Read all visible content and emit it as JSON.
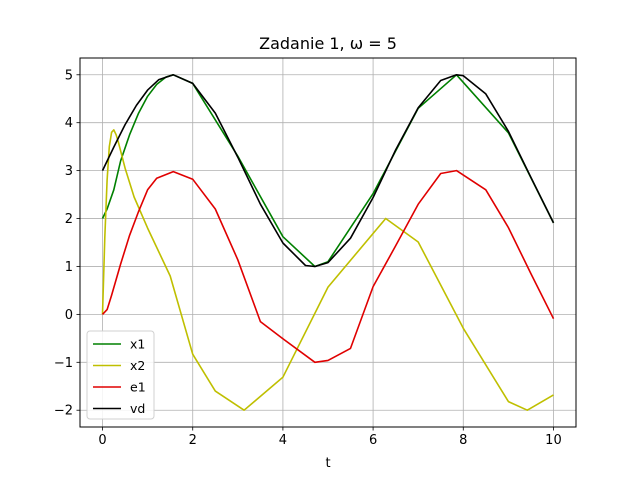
{
  "chart_data": {
    "type": "line",
    "title": "Zadanie 1, ω = 5",
    "xlabel": "t",
    "ylabel": "",
    "xlim": [
      -0.5,
      10.5
    ],
    "ylim": [
      -2.35,
      5.35
    ],
    "xticks": [
      0,
      2,
      4,
      6,
      8,
      10
    ],
    "xtick_labels": [
      "0",
      "2",
      "4",
      "6",
      "8",
      "10"
    ],
    "yticks": [
      -2,
      -1,
      0,
      1,
      2,
      3,
      4,
      5
    ],
    "ytick_labels": [
      "−2",
      "−1",
      "0",
      "1",
      "2",
      "3",
      "4",
      "5"
    ],
    "grid": true,
    "legend_position": "lower-left",
    "series": [
      {
        "name": "x1",
        "color": "#008000",
        "x": [
          0,
          0.1,
          0.25,
          0.4,
          0.6,
          0.8,
          1.0,
          1.2,
          1.4,
          1.57,
          2,
          3,
          4,
          4.71,
          5,
          6,
          7,
          7.85,
          9,
          10
        ],
        "y": [
          2.0,
          2.2,
          2.6,
          3.2,
          3.75,
          4.2,
          4.55,
          4.8,
          4.95,
          5.0,
          4.82,
          3.3,
          1.62,
          1.0,
          1.1,
          2.52,
          4.3,
          5.0,
          3.79,
          1.91
        ]
      },
      {
        "name": "x2",
        "color": "#bfbf00",
        "x": [
          0,
          0.05,
          0.1,
          0.15,
          0.2,
          0.25,
          0.3,
          0.35,
          0.5,
          0.7,
          1.0,
          1.5,
          2.0,
          2.5,
          3.14,
          4.0,
          5.0,
          6.28,
          7.0,
          8.0,
          9.0,
          9.42,
          10.0
        ],
        "y": [
          0.0,
          1.6,
          2.8,
          3.5,
          3.8,
          3.85,
          3.75,
          3.6,
          3.05,
          2.45,
          1.8,
          0.8,
          -0.83,
          -1.6,
          -2.0,
          -1.31,
          0.57,
          2.0,
          1.51,
          -0.29,
          -1.82,
          -2.0,
          -1.68
        ]
      },
      {
        "name": "e1",
        "color": "#e00000",
        "x": [
          0,
          0.1,
          0.2,
          0.4,
          0.6,
          0.8,
          1.0,
          1.2,
          1.57,
          2.0,
          2.5,
          3.0,
          3.5,
          4.0,
          4.71,
          5.0,
          5.5,
          6.0,
          6.5,
          7.0,
          7.5,
          7.85,
          8.5,
          9.0,
          9.5,
          10.0
        ],
        "y": [
          0.0,
          0.1,
          0.4,
          1.05,
          1.65,
          2.15,
          2.6,
          2.84,
          2.98,
          2.82,
          2.2,
          1.14,
          -0.15,
          -0.51,
          -1.0,
          -0.96,
          -0.71,
          0.58,
          1.43,
          2.3,
          2.94,
          3.0,
          2.6,
          1.81,
          0.85,
          -0.09
        ]
      },
      {
        "name": "vd",
        "color": "#000000",
        "x": [
          0,
          0.25,
          0.5,
          0.75,
          1.0,
          1.25,
          1.57,
          2.0,
          2.5,
          3.0,
          3.5,
          4.0,
          4.5,
          4.71,
          5.0,
          5.5,
          6.0,
          6.5,
          7.0,
          7.5,
          7.85,
          8.0,
          8.5,
          9.0,
          9.5,
          10.0
        ],
        "y": [
          3.0,
          3.49,
          3.96,
          4.36,
          4.68,
          4.9,
          5.0,
          4.82,
          4.2,
          3.28,
          2.3,
          1.49,
          1.02,
          1.0,
          1.08,
          1.59,
          2.44,
          3.43,
          4.31,
          4.88,
          5.0,
          4.98,
          4.6,
          3.82,
          2.86,
          1.91
        ]
      }
    ]
  }
}
